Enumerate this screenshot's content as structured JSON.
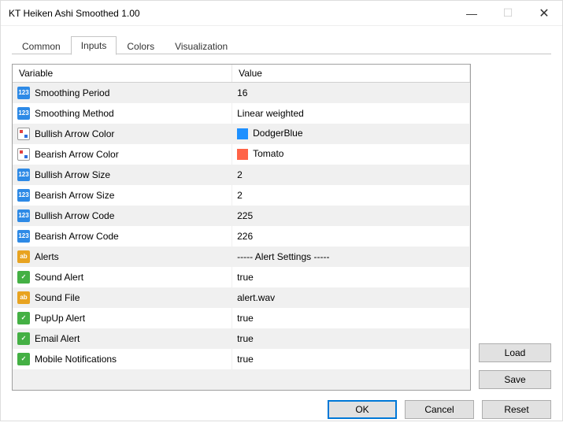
{
  "window": {
    "title": "KT Heiken Ashi Smoothed 1.00"
  },
  "tabs": [
    "Common",
    "Inputs",
    "Colors",
    "Visualization"
  ],
  "active_tab_index": 1,
  "table": {
    "headers": {
      "variable": "Variable",
      "value": "Value"
    },
    "rows": [
      {
        "icon": "int",
        "variable": "Smoothing Period",
        "value": "16"
      },
      {
        "icon": "int",
        "variable": "Smoothing Method",
        "value": "Linear weighted"
      },
      {
        "icon": "color",
        "variable": "Bullish Arrow Color",
        "value": "DodgerBlue",
        "swatch": "#1e90ff"
      },
      {
        "icon": "color",
        "variable": "Bearish Arrow Color",
        "value": "Tomato",
        "swatch": "#ff6347"
      },
      {
        "icon": "int",
        "variable": "Bullish Arrow Size",
        "value": "2"
      },
      {
        "icon": "int",
        "variable": "Bearish Arrow Size",
        "value": "2"
      },
      {
        "icon": "int",
        "variable": "Bullish Arrow Code",
        "value": "225"
      },
      {
        "icon": "int",
        "variable": "Bearish Arrow Code",
        "value": "226"
      },
      {
        "icon": "str",
        "variable": "Alerts",
        "value": "----- Alert Settings -----"
      },
      {
        "icon": "bool",
        "variable": "Sound Alert",
        "value": "true"
      },
      {
        "icon": "str",
        "variable": "Sound File",
        "value": "alert.wav"
      },
      {
        "icon": "bool",
        "variable": "PupUp Alert",
        "value": "true"
      },
      {
        "icon": "bool",
        "variable": "Email Alert",
        "value": "true"
      },
      {
        "icon": "bool",
        "variable": "Mobile Notifications",
        "value": "true"
      }
    ]
  },
  "buttons": {
    "load": "Load",
    "save": "Save",
    "ok": "OK",
    "cancel": "Cancel",
    "reset": "Reset"
  },
  "colors": {
    "row_alt": "#f0f0f0",
    "border": "#a0a0a0",
    "primary_border": "#0078d7",
    "button_bg": "#e1e1e1"
  }
}
